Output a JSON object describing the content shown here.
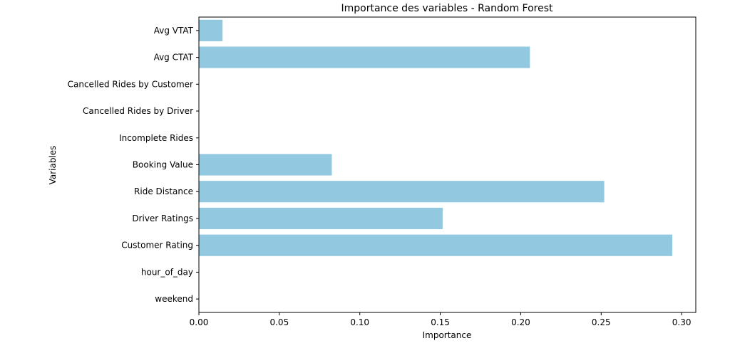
{
  "chart_data": {
    "type": "bar",
    "orientation": "horizontal",
    "title": "Importance des variables - Random Forest",
    "xlabel": "Importance",
    "ylabel": "Variables",
    "categories": [
      "Avg VTAT",
      "Avg CTAT",
      "Cancelled Rides by Customer",
      "Cancelled Rides by Driver",
      "Incomplete Rides",
      "Booking Value",
      "Ride Distance",
      "Driver Ratings",
      "Customer Rating",
      "hour_of_day",
      "weekend"
    ],
    "values": [
      0.0147,
      0.2057,
      0.0,
      0.0,
      0.0,
      0.0826,
      0.2519,
      0.1515,
      0.2942,
      0.0,
      0.0
    ],
    "xticks": [
      0.0,
      0.05,
      0.1,
      0.15,
      0.2,
      0.25,
      0.3
    ],
    "xtick_labels": [
      "0.00",
      "0.05",
      "0.10",
      "0.15",
      "0.20",
      "0.25",
      "0.30"
    ],
    "xlim": [
      0.0,
      0.3088
    ],
    "grid": false,
    "legend": "none",
    "colors": {
      "bar": "#92c9e0",
      "axis": "#000000",
      "text": "#000000"
    }
  }
}
